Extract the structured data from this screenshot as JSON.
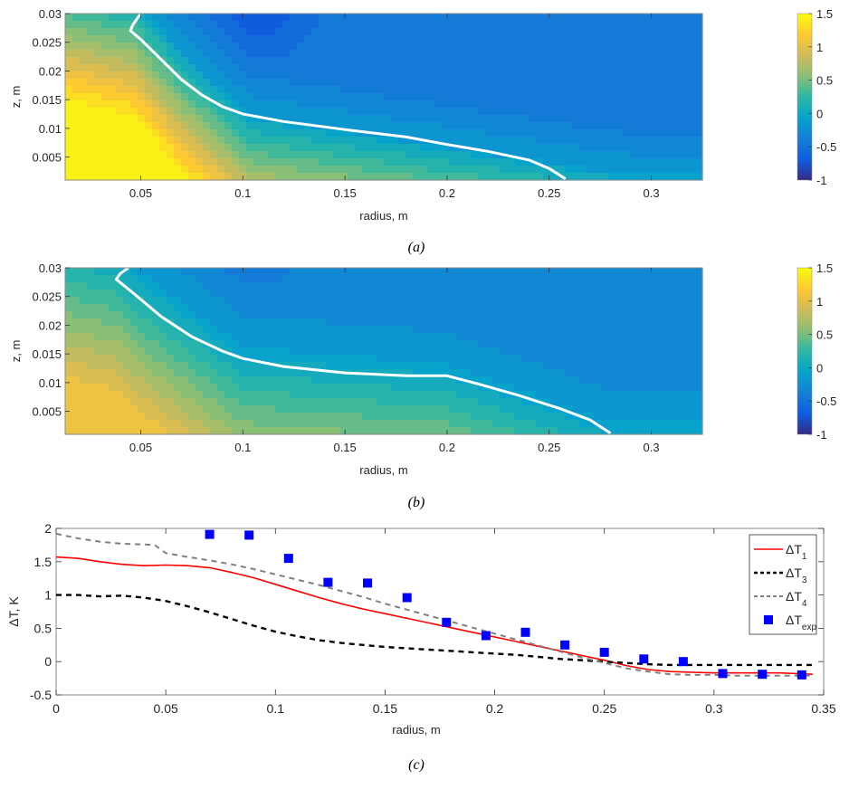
{
  "chart_data": [
    {
      "id": "a",
      "type": "heatmap",
      "subtype": "filled-contour",
      "caption": "(a)",
      "xlabel": "radius, m",
      "ylabel": "z, m",
      "xlim": [
        0.013,
        0.325
      ],
      "ylim": [
        0.001,
        0.03
      ],
      "xticks": [
        "0.05",
        "0.1",
        "0.15",
        "0.2",
        "0.25",
        "0.3"
      ],
      "xtick_values": [
        0.05,
        0.1,
        0.15,
        0.2,
        0.25,
        0.3
      ],
      "yticks": [
        "0.005",
        "0.01",
        "0.015",
        "0.02",
        "0.025",
        "0.03"
      ],
      "ytick_values": [
        0.005,
        0.01,
        0.015,
        0.02,
        0.025,
        0.03
      ],
      "colorbar": {
        "range": [
          -1,
          1.5
        ],
        "ticks": [
          "-1",
          "-0.5",
          "0",
          "0.5",
          "1",
          "1.5"
        ],
        "tick_values": [
          -1,
          -0.5,
          0,
          0.5,
          1,
          1.5
        ],
        "colormap": "parula"
      },
      "field_description": "Warm (~1.2-1.5) near small radius and low z, cold (~-0.8) near top around r=0.08-0.12, mostly ~-0.4 elsewhere",
      "zero_contour": {
        "color": "#ffffff",
        "r": [
          0.05,
          0.046,
          0.045,
          0.05,
          0.06,
          0.07,
          0.08,
          0.09,
          0.1,
          0.12,
          0.15,
          0.18,
          0.2,
          0.22,
          0.24,
          0.25,
          0.258
        ],
        "z": [
          0.03,
          0.028,
          0.027,
          0.0255,
          0.022,
          0.0185,
          0.0158,
          0.0138,
          0.0125,
          0.0112,
          0.0098,
          0.0085,
          0.0072,
          0.006,
          0.0045,
          0.003,
          0.0012
        ]
      }
    },
    {
      "id": "b",
      "type": "heatmap",
      "subtype": "filled-contour",
      "caption": "(b)",
      "xlabel": "radius, m",
      "ylabel": "z, m",
      "xlim": [
        0.013,
        0.325
      ],
      "ylim": [
        0.001,
        0.03
      ],
      "xticks": [
        "0.05",
        "0.1",
        "0.15",
        "0.2",
        "0.25",
        "0.3"
      ],
      "xtick_values": [
        0.05,
        0.1,
        0.15,
        0.2,
        0.25,
        0.3
      ],
      "yticks": [
        "0.005",
        "0.01",
        "0.015",
        "0.02",
        "0.025",
        "0.03"
      ],
      "ytick_values": [
        0.005,
        0.01,
        0.015,
        0.02,
        0.025,
        0.03
      ],
      "colorbar": {
        "range": [
          -1,
          1.5
        ],
        "ticks": [
          "-1",
          "-0.5",
          "0",
          "0.5",
          "1",
          "1.5"
        ],
        "tick_values": [
          -1,
          -0.5,
          0,
          0.5,
          1,
          1.5
        ],
        "colormap": "parula"
      },
      "field_description": "Mild warm (~0.6-0.9) near small radius and low z, cool (~-0.5) near top around r=0.08, mostly ~-0.3 elsewhere",
      "zero_contour": {
        "color": "#ffffff",
        "r": [
          0.044,
          0.04,
          0.038,
          0.045,
          0.06,
          0.075,
          0.09,
          0.1,
          0.12,
          0.15,
          0.18,
          0.2,
          0.215,
          0.235,
          0.255,
          0.27,
          0.28
        ],
        "z": [
          0.03,
          0.029,
          0.028,
          0.026,
          0.0215,
          0.018,
          0.0155,
          0.0142,
          0.0128,
          0.0117,
          0.0112,
          0.0112,
          0.0098,
          0.0078,
          0.0055,
          0.0035,
          0.0012
        ]
      }
    },
    {
      "id": "c",
      "type": "line",
      "caption": "(c)",
      "xlabel": "radius, m",
      "ylabel": "ΔT, K",
      "xlim": [
        0,
        0.35
      ],
      "ylim": [
        -0.5,
        2
      ],
      "xticks": [
        "0",
        "0.05",
        "0.1",
        "0.15",
        "0.2",
        "0.25",
        "0.3",
        "0.35"
      ],
      "xtick_values": [
        0,
        0.05,
        0.1,
        0.15,
        0.2,
        0.25,
        0.3,
        0.35
      ],
      "yticks": [
        "-0.5",
        "0",
        "0.5",
        "1",
        "1.5",
        "2"
      ],
      "ytick_values": [
        -0.5,
        0,
        0.5,
        1,
        1.5,
        2
      ],
      "legend_position": "top-right",
      "series": [
        {
          "name": "ΔT",
          "sub": "1",
          "style": "solid",
          "color": "#ff0000",
          "x": [
            0,
            0.01,
            0.02,
            0.03,
            0.04,
            0.05,
            0.06,
            0.07,
            0.08,
            0.09,
            0.1,
            0.11,
            0.12,
            0.13,
            0.14,
            0.15,
            0.16,
            0.17,
            0.18,
            0.19,
            0.2,
            0.21,
            0.22,
            0.23,
            0.24,
            0.25,
            0.26,
            0.27,
            0.28,
            0.29,
            0.3,
            0.31,
            0.32,
            0.33,
            0.345
          ],
          "y": [
            1.57,
            1.55,
            1.5,
            1.46,
            1.44,
            1.45,
            1.44,
            1.41,
            1.34,
            1.26,
            1.16,
            1.06,
            0.96,
            0.87,
            0.79,
            0.72,
            0.65,
            0.58,
            0.51,
            0.44,
            0.37,
            0.3,
            0.23,
            0.16,
            0.09,
            0.02,
            -0.06,
            -0.12,
            -0.15,
            -0.16,
            -0.17,
            -0.17,
            -0.17,
            -0.17,
            -0.19
          ]
        },
        {
          "name": "ΔT",
          "sub": "3",
          "style": "dashed",
          "color": "#000000",
          "x": [
            0,
            0.01,
            0.02,
            0.03,
            0.04,
            0.05,
            0.06,
            0.07,
            0.08,
            0.09,
            0.1,
            0.11,
            0.12,
            0.13,
            0.14,
            0.15,
            0.16,
            0.17,
            0.18,
            0.19,
            0.2,
            0.21,
            0.22,
            0.23,
            0.24,
            0.25,
            0.26,
            0.27,
            0.28,
            0.29,
            0.3,
            0.31,
            0.32,
            0.33,
            0.345
          ],
          "y": [
            1.0,
            1.0,
            0.98,
            0.99,
            0.96,
            0.91,
            0.83,
            0.74,
            0.64,
            0.54,
            0.45,
            0.38,
            0.32,
            0.28,
            0.25,
            0.22,
            0.2,
            0.18,
            0.16,
            0.14,
            0.12,
            0.1,
            0.07,
            0.04,
            0.02,
            0.0,
            -0.02,
            -0.04,
            -0.05,
            -0.05,
            -0.05,
            -0.05,
            -0.05,
            -0.05,
            -0.05
          ]
        },
        {
          "name": "ΔT",
          "sub": "4",
          "style": "dashed",
          "color": "#808080",
          "x": [
            0,
            0.01,
            0.02,
            0.03,
            0.04,
            0.045,
            0.05,
            0.06,
            0.07,
            0.08,
            0.09,
            0.1,
            0.11,
            0.12,
            0.13,
            0.14,
            0.15,
            0.16,
            0.17,
            0.18,
            0.19,
            0.2,
            0.21,
            0.22,
            0.23,
            0.24,
            0.25,
            0.26,
            0.27,
            0.28,
            0.29,
            0.3,
            0.31,
            0.32,
            0.33,
            0.345
          ],
          "y": [
            1.92,
            1.85,
            1.8,
            1.77,
            1.76,
            1.75,
            1.63,
            1.57,
            1.52,
            1.46,
            1.39,
            1.31,
            1.23,
            1.15,
            1.06,
            0.97,
            0.87,
            0.78,
            0.69,
            0.6,
            0.51,
            0.42,
            0.33,
            0.24,
            0.15,
            0.06,
            -0.02,
            -0.1,
            -0.15,
            -0.19,
            -0.2,
            -0.2,
            -0.21,
            -0.21,
            -0.21,
            -0.21
          ]
        },
        {
          "name": "ΔT",
          "sub": "exp",
          "style": "marker-square",
          "color": "#0000ff",
          "x": [
            0.07,
            0.088,
            0.106,
            0.124,
            0.142,
            0.16,
            0.178,
            0.196,
            0.214,
            0.232,
            0.25,
            0.268,
            0.286,
            0.304,
            0.322,
            0.34
          ],
          "y": [
            1.91,
            1.9,
            1.55,
            1.19,
            1.18,
            0.96,
            0.59,
            0.39,
            0.44,
            0.25,
            0.14,
            0.04,
            0.0,
            -0.18,
            -0.19,
            -0.2
          ]
        }
      ]
    }
  ]
}
